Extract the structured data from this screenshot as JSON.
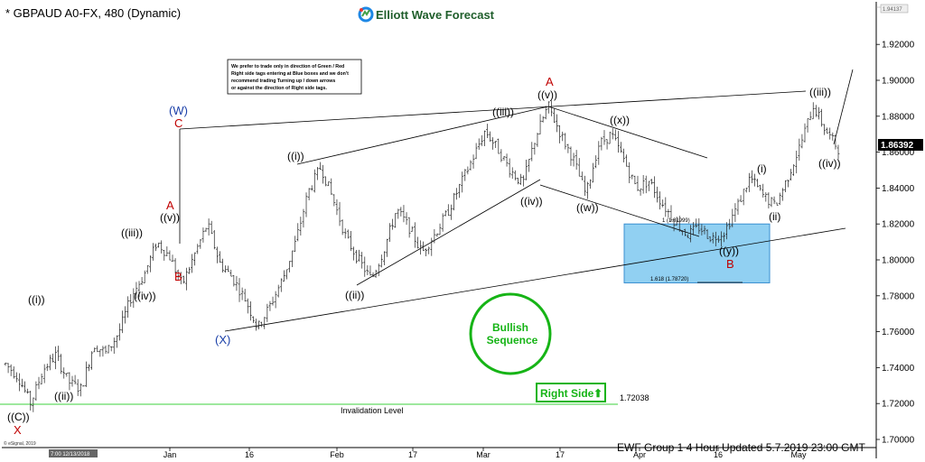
{
  "header": {
    "symbol_title": "* GBPAUD A0-FX, 480 (Dynamic)",
    "brand": "Elliott Wave Forecast",
    "brand_colors": [
      "#e53935",
      "#1e88e5",
      "#43a047",
      "#fbc02d"
    ]
  },
  "footer": {
    "text": "EWF Group 1 4 Hour  Updated 5.7.2019 23:00 GMT",
    "copyright": "© eSignal, 2019",
    "date_box": "7:00 12/13/2018"
  },
  "note_box": {
    "lines": [
      "We prefer to trade only in direction of Green / Red",
      "Right side tags entering at Blue boxes and we don't",
      "recommend trading Turning up / down arrows",
      "or against the direction of Right side tags."
    ]
  },
  "badges": {
    "bullish_line1": "Bullish",
    "bullish_line2": "Sequence",
    "right_side": "Right Side",
    "right_side_arrow": "⬆",
    "color": "#16b416"
  },
  "levels": {
    "invalidation_value": "1.72038",
    "invalidation_label": "Invalidation Level",
    "fib_1": "1 (1.81999)",
    "fib_1618": "1.618 (1.78720)",
    "blue_box_top": 1.81999,
    "blue_box_bottom": 1.7872,
    "last_price": "1.86392",
    "top_price_tag": "1.94137"
  },
  "chart_data": {
    "type": "candlestick",
    "instrument": "GBPAUD",
    "timeframe": "480",
    "ylim": [
      1.7,
      1.94
    ],
    "y_ticks": [
      "1.92000",
      "1.90000",
      "1.88000",
      "1.86000",
      "1.84000",
      "1.82000",
      "1.80000",
      "1.78000",
      "1.76000",
      "1.74000",
      "1.72000",
      "1.70000"
    ],
    "x_ticks": [
      "Jan",
      "16",
      "Feb",
      "17",
      "Mar",
      "17",
      "Apr",
      "16",
      "May"
    ],
    "price_path": [
      1.742,
      1.735,
      1.72,
      1.739,
      1.747,
      1.732,
      1.728,
      1.753,
      1.748,
      1.76,
      1.78,
      1.792,
      1.81,
      1.802,
      1.786,
      1.803,
      1.82,
      1.798,
      1.79,
      1.778,
      1.762,
      1.775,
      1.79,
      1.81,
      1.838,
      1.852,
      1.833,
      1.812,
      1.8,
      1.789,
      1.806,
      1.828,
      1.818,
      1.804,
      1.814,
      1.826,
      1.841,
      1.856,
      1.872,
      1.862,
      1.85,
      1.842,
      1.868,
      1.886,
      1.87,
      1.856,
      1.836,
      1.864,
      1.87,
      1.856,
      1.84,
      1.844,
      1.832,
      1.822,
      1.814,
      1.818,
      1.812,
      1.816,
      1.83,
      1.846,
      1.836,
      1.83,
      1.846,
      1.864,
      1.886,
      1.872,
      1.862
    ],
    "waves": [
      {
        "label": "((C))",
        "color": "black"
      },
      {
        "label": "X",
        "color": "red"
      },
      {
        "label": "((i))",
        "color": "black"
      },
      {
        "label": "((ii))",
        "color": "black"
      },
      {
        "label": "((iii))",
        "color": "black"
      },
      {
        "label": "((iv))",
        "color": "black"
      },
      {
        "label": "((v))",
        "color": "black"
      },
      {
        "label": "A",
        "color": "red"
      },
      {
        "label": "B",
        "color": "red"
      },
      {
        "label": "(W)",
        "color": "blue"
      },
      {
        "label": "C",
        "color": "red"
      },
      {
        "label": "(X)",
        "color": "blue"
      },
      {
        "label": "((i))",
        "color": "black"
      },
      {
        "label": "((ii))",
        "color": "black"
      },
      {
        "label": "((iii))",
        "color": "black"
      },
      {
        "label": "((iv))",
        "color": "black"
      },
      {
        "label": "((v))",
        "color": "black"
      },
      {
        "label": "A",
        "color": "red"
      },
      {
        "label": "((w))",
        "color": "black"
      },
      {
        "label": "((x))",
        "color": "black"
      },
      {
        "label": "((y))",
        "color": "black"
      },
      {
        "label": "B",
        "color": "red"
      },
      {
        "label": "(i)",
        "color": "black"
      },
      {
        "label": "(ii)",
        "color": "black"
      },
      {
        "label": "((iii))",
        "color": "black"
      },
      {
        "label": "((iv))",
        "color": "black"
      }
    ]
  }
}
